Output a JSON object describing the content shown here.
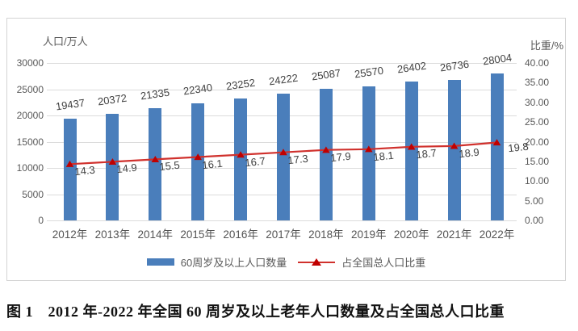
{
  "axes": {
    "left": {
      "title": "人口/万人",
      "ticks": [
        "30000",
        "25000",
        "20000",
        "15000",
        "10000",
        "5000",
        "0"
      ]
    },
    "right": {
      "title": "比重/%",
      "ticks": [
        "40.00",
        "35.00",
        "30.00",
        "25.00",
        "20.00",
        "15.00",
        "10.00",
        "5.00",
        "0.00"
      ]
    }
  },
  "chart_data": {
    "type": "combo",
    "categories": [
      "2012年",
      "2013年",
      "2014年",
      "2015年",
      "2016年",
      "2017年",
      "2018年",
      "2019年",
      "2020年",
      "2021年",
      "2022年"
    ],
    "series": [
      {
        "name": "60周岁及以上人口数量",
        "type": "bar",
        "axis": "left",
        "color": "#4A7EBB",
        "values": [
          19437,
          20372,
          21335,
          22340,
          23252,
          24222,
          25087,
          25570,
          26402,
          26736,
          28004
        ]
      },
      {
        "name": "占全国总人口比重",
        "type": "line",
        "axis": "right",
        "color": "#D0312D",
        "marker": "triangle",
        "marker_color": "#C00000",
        "values": [
          14.3,
          14.9,
          15.5,
          16.1,
          16.7,
          17.3,
          17.9,
          18.1,
          18.7,
          18.9,
          19.8
        ]
      }
    ],
    "left_axis": {
      "label": "人口/万人",
      "min": 0,
      "max": 30000,
      "tick_step": 5000
    },
    "right_axis": {
      "label": "比重/%",
      "min": 0,
      "max": 40,
      "tick_step": 5
    },
    "grid": true,
    "legend_position": "bottom"
  },
  "caption": "图 1　2012 年-2022 年全国 60 周岁及以上老年人口数量及占全国总人口比重"
}
